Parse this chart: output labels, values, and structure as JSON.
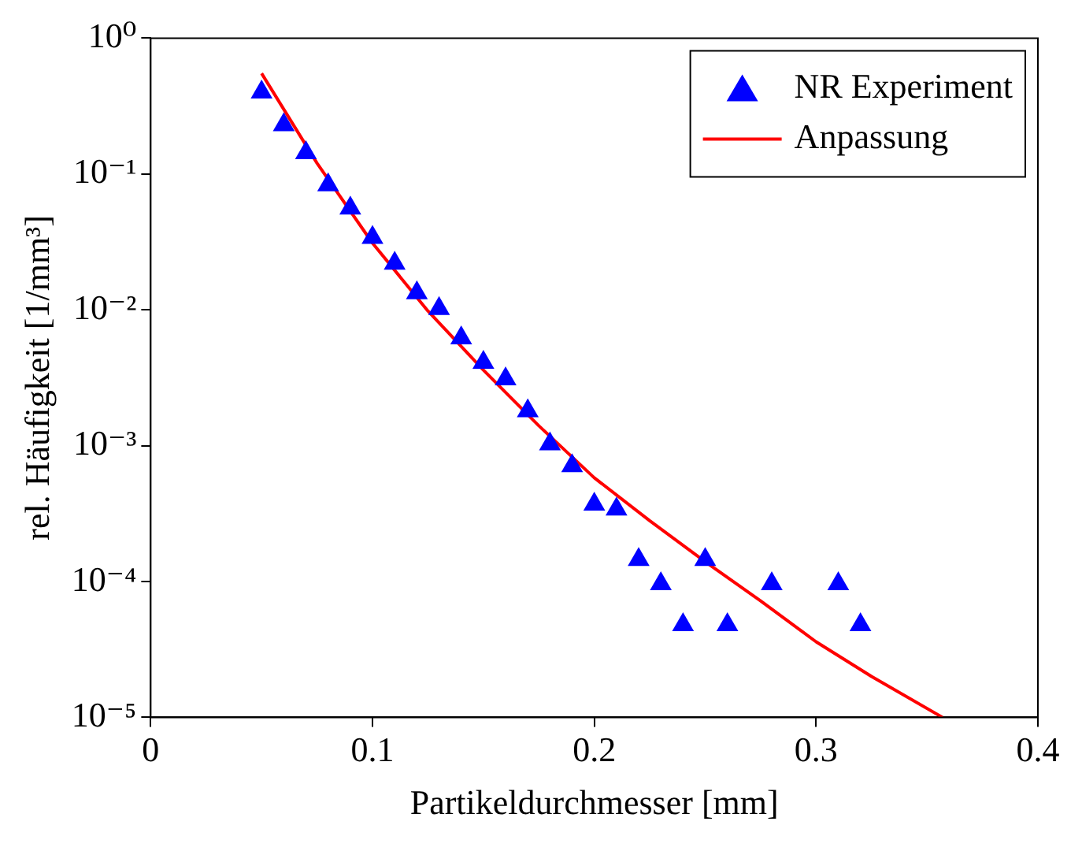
{
  "chart_data": {
    "type": "scatter",
    "xlabel": "Partikeldurchmesser [mm]",
    "ylabel": "rel. Häufigkeit [1/mm³]",
    "log": "y",
    "grid": false,
    "legend": "top right",
    "xlim": [
      0,
      0.4
    ],
    "xticks": [
      0,
      0.1,
      0.2,
      0.3,
      0.4
    ],
    "ylim": [
      1e-05,
      1
    ],
    "yticks": [
      {
        "value": 1e-05,
        "label": "10⁻⁵"
      },
      {
        "value": 0.0001,
        "label": "10⁻⁴"
      },
      {
        "value": 0.001,
        "label": "10⁻³"
      },
      {
        "value": 0.01,
        "label": "10⁻²"
      },
      {
        "value": 0.1,
        "label": "10⁻¹"
      },
      {
        "value": 1,
        "label": "10⁰"
      }
    ],
    "series": [
      {
        "name": "NR Experiment",
        "type": "scatter",
        "marker": "triangle",
        "color": "#0000ff",
        "x": [
          0.05,
          0.06,
          0.07,
          0.08,
          0.09,
          0.1,
          0.11,
          0.12,
          0.13,
          0.14,
          0.15,
          0.16,
          0.17,
          0.18,
          0.19,
          0.2,
          0.21,
          0.22,
          0.23,
          0.24,
          0.25,
          0.26,
          0.28,
          0.31,
          0.32
        ],
        "values": [
          0.4,
          0.23,
          0.143,
          0.083,
          0.056,
          0.034,
          0.022,
          0.0133,
          0.0102,
          0.0062,
          0.0041,
          0.0031,
          0.0018,
          0.00103,
          0.00071,
          0.00037,
          0.00034,
          0.000145,
          9.6e-05,
          4.8e-05,
          0.000145,
          4.8e-05,
          9.6e-05,
          9.6e-05,
          4.8e-05
        ]
      },
      {
        "name": "Anpassung",
        "type": "line",
        "marker": "none",
        "line_style": "solid",
        "color": "#ff0000",
        "x": [
          0.05,
          0.075,
          0.1,
          0.125,
          0.15,
          0.175,
          0.2,
          0.225,
          0.25,
          0.275,
          0.3,
          0.325,
          0.357
        ],
        "values": [
          0.55,
          0.12,
          0.031,
          0.0098,
          0.0036,
          0.0014,
          0.00058,
          0.00028,
          0.00014,
          7.2e-05,
          3.6e-05,
          2e-05,
          1e-05
        ]
      }
    ]
  }
}
